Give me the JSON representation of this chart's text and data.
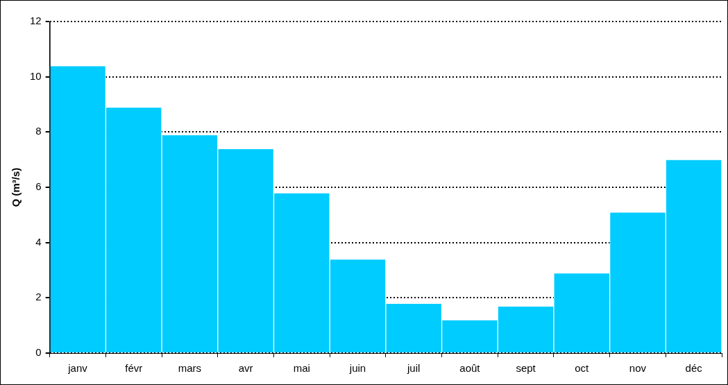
{
  "chart_data": {
    "type": "bar",
    "ylabel": "Q (m³/s)",
    "categories": [
      "janv",
      "févr",
      "mars",
      "avr",
      "mai",
      "juin",
      "juil",
      "août",
      "sept",
      "oct",
      "nov",
      "déc"
    ],
    "values": [
      10.4,
      8.9,
      7.9,
      7.4,
      5.8,
      3.4,
      1.8,
      1.2,
      1.7,
      2.9,
      5.1,
      7.0
    ],
    "color": "#00ccff",
    "ylim": [
      0,
      12
    ],
    "yticks": [
      0,
      2,
      4,
      6,
      8,
      10,
      12
    ],
    "grid": "y",
    "legend": false
  }
}
